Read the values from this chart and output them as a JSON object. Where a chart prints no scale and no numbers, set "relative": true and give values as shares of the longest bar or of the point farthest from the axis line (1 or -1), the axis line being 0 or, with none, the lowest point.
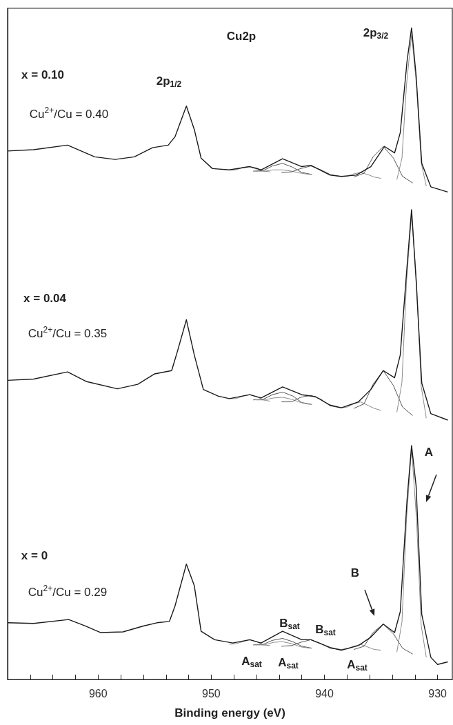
{
  "chart_data": {
    "type": "line",
    "relative": true,
    "xlabel": "Binding energy (eV)",
    "xlim": [
      968,
      928.7
    ],
    "xticks": [
      {
        "value": 966,
        "label": null
      },
      {
        "value": 964,
        "label": null
      },
      {
        "value": 962,
        "label": null
      },
      960,
      {
        "value": 958,
        "label": null
      },
      {
        "value": 956,
        "label": null
      },
      {
        "value": 954,
        "label": null
      },
      {
        "value": 952,
        "label": null
      },
      950,
      {
        "value": 948,
        "label": null
      },
      {
        "value": 946,
        "label": null
      },
      {
        "value": 944,
        "label": null
      },
      {
        "value": 942,
        "label": null
      },
      940,
      {
        "value": 938,
        "label": null
      },
      {
        "value": 936,
        "label": null
      },
      {
        "value": 934,
        "label": null
      },
      {
        "value": 932,
        "label": null
      },
      930
    ],
    "series": [
      {
        "color": "#8c8c8c",
        "x": [
          948.4,
          947.8,
          947.2,
          946.6,
          946.0,
          945.4,
          944.8
        ],
        "values": [
          0.782,
          0.782,
          0.786,
          0.787,
          0.785,
          0.78,
          0.779
        ]
      },
      {
        "color": "#555555",
        "x": [
          946.3,
          945.4,
          944.6,
          943.7,
          942.8,
          942.0,
          941.1
        ],
        "values": [
          0.78,
          0.781,
          0.788,
          0.792,
          0.786,
          0.778,
          0.775
        ]
      },
      {
        "color": "#8c8c8c",
        "x": [
          946.1,
          945.3,
          944.5,
          943.7,
          942.9,
          942.1,
          941.3
        ],
        "values": [
          0.78,
          0.78,
          0.782,
          0.782,
          0.78,
          0.777,
          0.775
        ]
      },
      {
        "color": "#555555",
        "x": [
          943.8,
          942.9,
          942.1,
          941.2,
          940.3,
          939.5,
          938.6
        ],
        "values": [
          0.778,
          0.779,
          0.784,
          0.788,
          0.782,
          0.775,
          0.772
        ]
      },
      {
        "color": "#8c8c8c",
        "x": [
          938.6,
          938.0,
          937.4,
          936.8,
          936.2,
          935.6,
          935.0
        ],
        "values": [
          0.772,
          0.772,
          0.776,
          0.778,
          0.775,
          0.771,
          0.769
        ]
      },
      {
        "color": "#555555",
        "x": [
          937.4,
          936.5,
          935.7,
          934.8,
          933.9,
          933.1,
          932.2
        ],
        "values": [
          0.771,
          0.777,
          0.802,
          0.818,
          0.8,
          0.772,
          0.762
        ]
      },
      {
        "color": "#8c8c8c",
        "x": [
          933.6,
          933.15,
          932.75,
          932.3,
          931.85,
          931.45,
          931.0
        ],
        "values": [
          0.767,
          0.8,
          0.912,
          0.99,
          0.909,
          0.793,
          0.757
        ]
      },
      {
        "color": "#8c8c8c",
        "x": [
          948.4,
          947.8,
          947.2,
          946.6,
          946.0,
          945.4,
          944.8
        ],
        "values": [
          0.431,
          0.431,
          0.435,
          0.437,
          0.434,
          0.429,
          0.427
        ]
      },
      {
        "color": "#555555",
        "x": [
          946.3,
          945.4,
          944.6,
          943.7,
          942.8,
          942.0,
          941.1
        ],
        "values": [
          0.429,
          0.43,
          0.437,
          0.441,
          0.435,
          0.425,
          0.422
        ]
      },
      {
        "color": "#8c8c8c",
        "x": [
          946.1,
          945.3,
          944.5,
          943.7,
          942.9,
          942.1,
          941.3
        ],
        "values": [
          0.429,
          0.429,
          0.432,
          0.433,
          0.43,
          0.425,
          0.422
        ]
      },
      {
        "color": "#555555",
        "x": [
          943.8,
          942.9,
          942.1,
          941.2,
          940.3,
          939.5,
          938.6
        ],
        "values": [
          0.426,
          0.426,
          0.433,
          0.436,
          0.43,
          0.42,
          0.417
        ]
      },
      {
        "color": "#8c8c8c",
        "x": [
          938.6,
          938.0,
          937.4,
          936.8,
          936.2,
          935.6,
          935.0
        ],
        "values": [
          0.417,
          0.418,
          0.423,
          0.426,
          0.421,
          0.416,
          0.413
        ]
      },
      {
        "color": "#555555",
        "x": [
          937.4,
          936.5,
          935.7,
          934.8,
          933.9,
          933.1,
          932.2
        ],
        "values": [
          0.416,
          0.423,
          0.453,
          0.474,
          0.451,
          0.418,
          0.405
        ]
      },
      {
        "color": "#8c8c8c",
        "x": [
          933.6,
          933.15,
          932.75,
          932.3,
          931.85,
          931.45,
          931.0
        ],
        "values": [
          0.41,
          0.456,
          0.609,
          0.715,
          0.606,
          0.45,
          0.401
        ]
      },
      {
        "color": "#8c8c8c",
        "x": [
          948.4,
          947.8,
          947.2,
          946.6,
          946.0,
          945.4,
          944.8
        ],
        "values": [
          0.054,
          0.055,
          0.058,
          0.061,
          0.058,
          0.053,
          0.052
        ]
      },
      {
        "color": "#555555",
        "x": [
          946.3,
          945.4,
          944.6,
          943.7,
          942.8,
          942.0,
          941.1
        ],
        "values": [
          0.053,
          0.054,
          0.06,
          0.063,
          0.058,
          0.051,
          0.048
        ]
      },
      {
        "color": "#8c8c8c",
        "x": [
          946.1,
          945.3,
          944.5,
          943.7,
          942.9,
          942.1,
          941.3
        ],
        "values": [
          0.053,
          0.053,
          0.057,
          0.058,
          0.055,
          0.05,
          0.048
        ]
      },
      {
        "color": "#555555",
        "x": [
          943.8,
          942.9,
          942.1,
          941.2,
          940.3,
          939.5,
          938.6
        ],
        "values": [
          0.051,
          0.052,
          0.057,
          0.061,
          0.055,
          0.048,
          0.046
        ]
      },
      {
        "color": "#8c8c8c",
        "x": [
          938.6,
          938.0,
          937.4,
          936.8,
          936.2,
          935.6,
          935.0
        ],
        "values": [
          0.046,
          0.047,
          0.051,
          0.054,
          0.05,
          0.046,
          0.045
        ]
      },
      {
        "color": "#555555",
        "x": [
          937.4,
          936.5,
          935.7,
          934.8,
          933.9,
          933.1,
          932.2
        ],
        "values": [
          0.046,
          0.051,
          0.072,
          0.085,
          0.07,
          0.048,
          0.039
        ]
      },
      {
        "color": "#8c8c8c",
        "x": [
          933.6,
          933.15,
          932.75,
          932.3,
          931.85,
          931.45,
          931.0
        ],
        "values": [
          0.042,
          0.088,
          0.245,
          0.355,
          0.242,
          0.083,
          0.034
        ]
      },
      {
        "color": "#1a1a1a",
        "x": [
          968.0,
          965.7,
          962.7,
          960.3,
          958.5,
          956.8,
          955.2,
          953.8,
          953.2,
          952.2,
          951.5,
          950.9,
          949.9,
          948.4,
          946.6,
          945.6,
          943.7,
          942.0,
          941.2,
          939.5,
          938.5,
          937.2,
          935.9,
          934.7,
          933.8,
          933.3,
          932.7,
          932.3,
          931.9,
          931.4,
          930.6,
          929.1
        ],
        "values": [
          0.811,
          0.813,
          0.82,
          0.802,
          0.798,
          0.802,
          0.816,
          0.82,
          0.833,
          0.88,
          0.844,
          0.8,
          0.784,
          0.782,
          0.787,
          0.782,
          0.799,
          0.787,
          0.789,
          0.774,
          0.772,
          0.774,
          0.787,
          0.818,
          0.808,
          0.839,
          0.949,
          1.0,
          0.927,
          0.792,
          0.756,
          0.748
        ]
      },
      {
        "color": "#1a1a1a",
        "x": [
          968.0,
          965.7,
          962.7,
          961.0,
          958.3,
          956.5,
          955.0,
          953.5,
          953.0,
          952.2,
          951.5,
          950.7,
          949.4,
          948.4,
          946.6,
          945.6,
          943.7,
          942.0,
          940.8,
          939.5,
          938.5,
          937.0,
          935.9,
          934.8,
          933.8,
          933.3,
          932.7,
          932.3,
          931.9,
          931.4,
          930.6,
          929.1
        ],
        "values": [
          0.459,
          0.461,
          0.472,
          0.457,
          0.446,
          0.453,
          0.469,
          0.474,
          0.503,
          0.552,
          0.498,
          0.445,
          0.435,
          0.431,
          0.437,
          0.432,
          0.449,
          0.437,
          0.434,
          0.421,
          0.417,
          0.426,
          0.445,
          0.474,
          0.463,
          0.498,
          0.634,
          0.721,
          0.613,
          0.455,
          0.408,
          0.398
        ]
      },
      {
        "color": "#1a1a1a",
        "x": [
          968.0,
          965.7,
          962.6,
          961.1,
          959.8,
          957.8,
          956.0,
          954.8,
          953.7,
          953.2,
          952.2,
          951.5,
          950.9,
          949.7,
          948.1,
          946.6,
          945.6,
          943.7,
          942.0,
          941.2,
          939.5,
          938.5,
          937.0,
          935.9,
          934.8,
          933.8,
          933.3,
          932.7,
          932.3,
          931.9,
          931.4,
          930.6,
          930.0,
          929.1
        ],
        "values": [
          0.087,
          0.086,
          0.092,
          0.082,
          0.072,
          0.073,
          0.082,
          0.087,
          0.089,
          0.113,
          0.177,
          0.144,
          0.074,
          0.061,
          0.056,
          0.061,
          0.056,
          0.074,
          0.061,
          0.061,
          0.049,
          0.045,
          0.052,
          0.065,
          0.085,
          0.072,
          0.104,
          0.276,
          0.359,
          0.297,
          0.1,
          0.034,
          0.023,
          0.027
        ]
      }
    ],
    "annotations": [
      "Cu2p",
      "2p$_{3/2}$",
      "2p$_{1/2}$",
      "x = 0.10",
      "Cu$^{2+}$/Cu = 0.40",
      "x = 0.04",
      "Cu$^{2+}$/Cu = 0.35",
      "x = 0",
      "Cu$^{2+}$/Cu = 0.29",
      "A",
      "B",
      "B$_{sat}$",
      "B$_{sat}$",
      "A$_{sat}$",
      "A$_{sat}$",
      "A$_{sat}$"
    ]
  }
}
